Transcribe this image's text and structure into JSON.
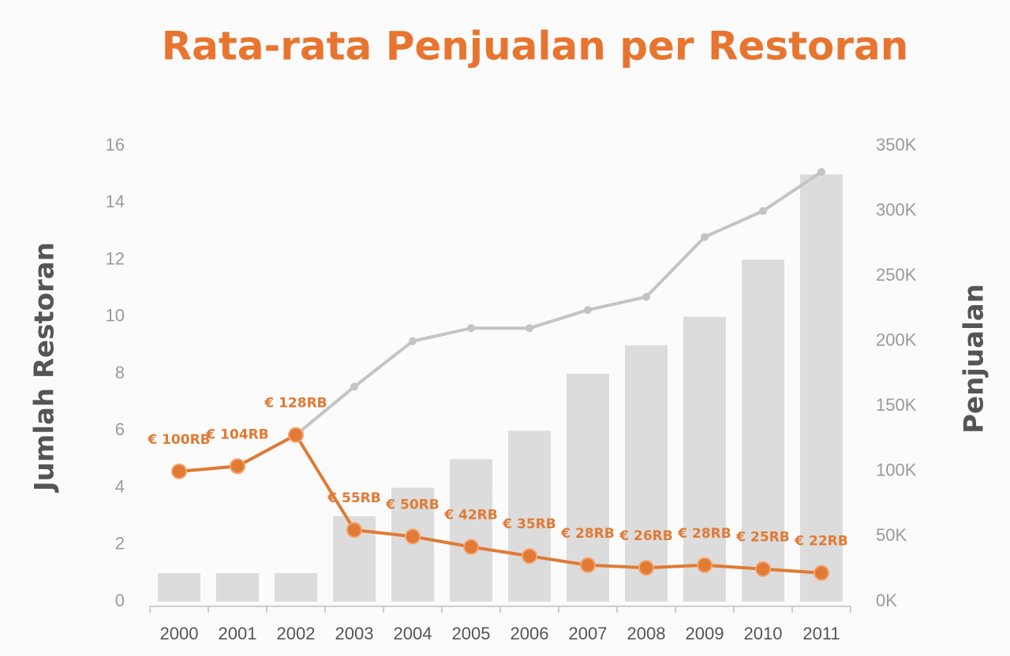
{
  "chart_data": {
    "type": "bar",
    "title": "Rata-rata Penjualan per Restoran",
    "ylabel": "Jumlah Restoran",
    "y2label": "Penjualan",
    "categories": [
      "2000",
      "2001",
      "2002",
      "2003",
      "2004",
      "2005",
      "2006",
      "2007",
      "2008",
      "2009",
      "2010",
      "2011"
    ],
    "ylim": [
      0,
      16
    ],
    "yticks": [
      0,
      2,
      4,
      6,
      8,
      10,
      12,
      14,
      16
    ],
    "y2lim": [
      0,
      350000
    ],
    "y2ticks": [
      {
        "value": 0,
        "label": "0K"
      },
      {
        "value": 50000,
        "label": "50K"
      },
      {
        "value": 100000,
        "label": "100K"
      },
      {
        "value": 150000,
        "label": "150K"
      },
      {
        "value": 200000,
        "label": "200K"
      },
      {
        "value": 250000,
        "label": "250K"
      },
      {
        "value": 300000,
        "label": "300K"
      },
      {
        "value": 350000,
        "label": "350K"
      }
    ],
    "series": [
      {
        "type": "bar",
        "color": "#dcdcdc",
        "values": [
          1,
          1,
          1,
          3,
          4,
          5,
          6,
          8,
          9,
          10,
          12,
          15
        ]
      },
      {
        "type": "line",
        "axis": "y2",
        "color": "#c4c4c4",
        "values": [
          100000,
          104000,
          128000,
          165000,
          200000,
          210000,
          210000,
          224000,
          234000,
          280000,
          300000,
          330000
        ]
      },
      {
        "type": "line",
        "axis": "y2",
        "color": "#e07a35",
        "values": [
          100000,
          104000,
          128000,
          55000,
          50000,
          42000,
          35000,
          28000,
          26000,
          28000,
          25000,
          22000
        ],
        "value_labels": [
          "€ 100RB",
          "€ 104RB",
          "€ 128RB",
          "€ 55RB",
          "€ 50RB",
          "€ 42RB",
          "€ 35RB",
          "€ 28RB",
          "€ 26RB",
          "€ 28RB",
          "€ 25RB",
          "€ 22RB"
        ]
      }
    ]
  }
}
